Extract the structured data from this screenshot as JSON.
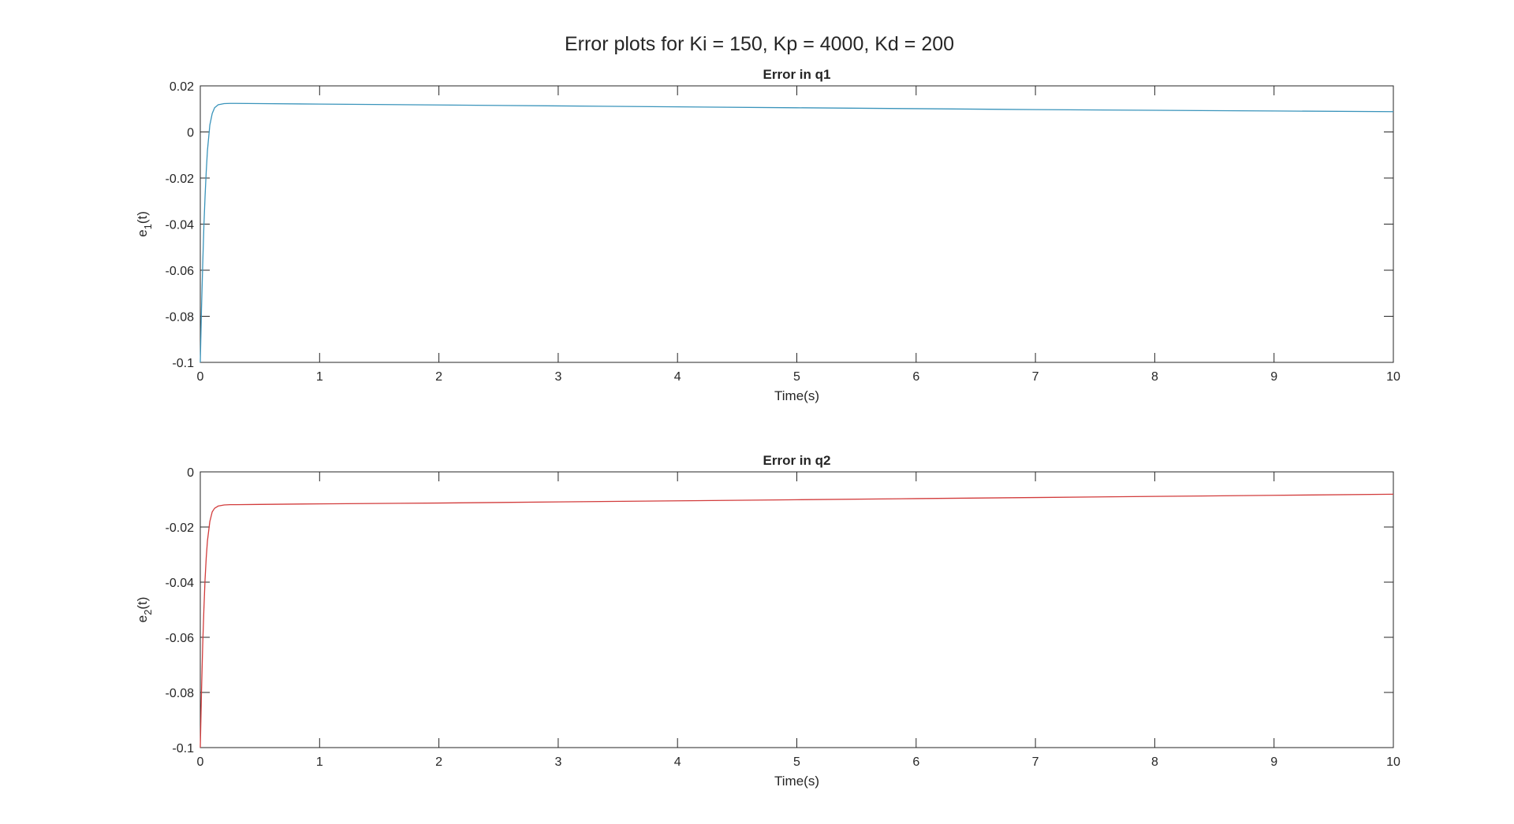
{
  "figure": {
    "title": "Error plots for Ki = 150, Kp = 4000, Kd = 200"
  },
  "chart_data": [
    {
      "type": "line",
      "title": "Error in q1",
      "xlabel": "Time(s)",
      "ylabel": {
        "base": "e",
        "subscript": "1",
        "suffix": "(t)"
      },
      "xlim": [
        0,
        10
      ],
      "ylim": [
        -0.1,
        0.02
      ],
      "xticks": [
        0,
        1,
        2,
        3,
        4,
        5,
        6,
        7,
        8,
        9,
        10
      ],
      "xtick_labels": [
        "0",
        "1",
        "2",
        "3",
        "4",
        "5",
        "6",
        "7",
        "8",
        "9",
        "10"
      ],
      "yticks": [
        -0.1,
        -0.08,
        -0.06,
        -0.04,
        -0.02,
        0,
        0.02
      ],
      "ytick_labels": [
        "-0.1",
        "-0.08",
        "-0.06",
        "-0.04",
        "-0.02",
        "0",
        "0.02"
      ],
      "grid": false,
      "color": "#3a94bb",
      "x": [
        0,
        0.01,
        0.02,
        0.03,
        0.04,
        0.05,
        0.06,
        0.08,
        0.1,
        0.12,
        0.15,
        0.2,
        0.25,
        0.3,
        0.5,
        1,
        2,
        3,
        4,
        5,
        6,
        7,
        8,
        9,
        10
      ],
      "y": [
        -0.1,
        -0.077,
        -0.058,
        -0.041,
        -0.028,
        -0.017,
        -0.008,
        0.003,
        0.008,
        0.0105,
        0.0118,
        0.0123,
        0.0124,
        0.0124,
        0.0123,
        0.0121,
        0.0117,
        0.0113,
        0.0109,
        0.0105,
        0.0101,
        0.0097,
        0.0094,
        0.0091,
        0.0088
      ]
    },
    {
      "type": "line",
      "title": "Error in q2",
      "xlabel": "Time(s)",
      "ylabel": {
        "base": "e",
        "subscript": "2",
        "suffix": "(t)"
      },
      "xlim": [
        0,
        10
      ],
      "ylim": [
        -0.1,
        0
      ],
      "xticks": [
        0,
        1,
        2,
        3,
        4,
        5,
        6,
        7,
        8,
        9,
        10
      ],
      "xtick_labels": [
        "0",
        "1",
        "2",
        "3",
        "4",
        "5",
        "6",
        "7",
        "8",
        "9",
        "10"
      ],
      "yticks": [
        -0.1,
        -0.08,
        -0.06,
        -0.04,
        -0.02,
        0
      ],
      "ytick_labels": [
        "-0.1",
        "-0.08",
        "-0.06",
        "-0.04",
        "-0.02",
        "0"
      ],
      "grid": false,
      "color": "#d23c3c",
      "x": [
        0,
        0.01,
        0.02,
        0.03,
        0.04,
        0.05,
        0.06,
        0.08,
        0.1,
        0.12,
        0.15,
        0.2,
        0.25,
        0.3,
        0.5,
        1,
        2,
        3,
        4,
        5,
        6,
        7,
        8,
        9,
        10
      ],
      "y": [
        -0.1,
        -0.08,
        -0.063,
        -0.05,
        -0.039,
        -0.031,
        -0.025,
        -0.018,
        -0.0145,
        -0.0132,
        -0.0124,
        -0.012,
        -0.0119,
        -0.0119,
        -0.0118,
        -0.0116,
        -0.0113,
        -0.0109,
        -0.0105,
        -0.0101,
        -0.0097,
        -0.0093,
        -0.0089,
        -0.0085,
        -0.0081
      ]
    }
  ]
}
